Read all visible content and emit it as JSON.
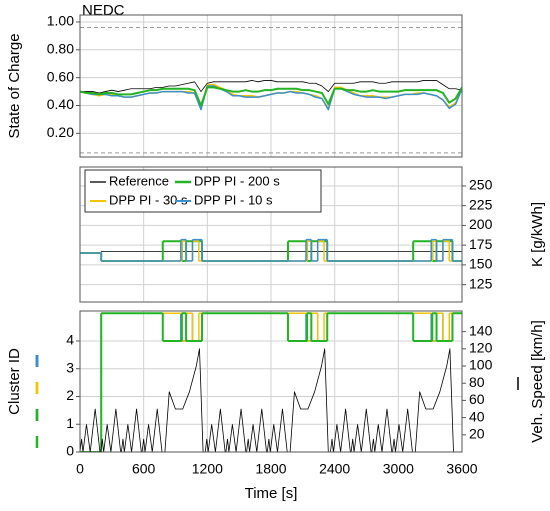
{
  "chart_data": [
    {
      "type": "line",
      "title": "NEDC",
      "ylabel": "State of Charge",
      "x": [
        0,
        60,
        120,
        180,
        240,
        300,
        360,
        420,
        480,
        540,
        600,
        660,
        720,
        780,
        840,
        900,
        960,
        1020,
        1080,
        1140,
        1200,
        1260,
        1320,
        1380,
        1440,
        1500,
        1560,
        1620,
        1680,
        1740,
        1800,
        1860,
        1920,
        1980,
        2040,
        2100,
        2160,
        2220,
        2280,
        2340,
        2400,
        2460,
        2520,
        2580,
        2640,
        2700,
        2760,
        2820,
        2880,
        2940,
        3000,
        3060,
        3120,
        3180,
        3240,
        3300,
        3360,
        3420,
        3480,
        3540,
        3600
      ],
      "series": [
        {
          "color": "#000000",
          "width": 0.8,
          "values": [
            0.5,
            0.5,
            0.5,
            0.49,
            0.5,
            0.51,
            0.5,
            0.51,
            0.52,
            0.52,
            0.52,
            0.52,
            0.53,
            0.53,
            0.54,
            0.54,
            0.55,
            0.56,
            0.57,
            0.5,
            0.56,
            0.57,
            0.57,
            0.57,
            0.57,
            0.57,
            0.57,
            0.58,
            0.57,
            0.58,
            0.58,
            0.57,
            0.57,
            0.57,
            0.57,
            0.57,
            0.56,
            0.56,
            0.54,
            0.5,
            0.56,
            0.56,
            0.56,
            0.56,
            0.57,
            0.57,
            0.57,
            0.56,
            0.56,
            0.57,
            0.57,
            0.57,
            0.57,
            0.57,
            0.58,
            0.58,
            0.58,
            0.55,
            0.52,
            0.52,
            0.51
          ]
        },
        {
          "color": "#f5c400",
          "width": 1.5,
          "values": [
            0.5,
            0.49,
            0.48,
            0.47,
            0.48,
            0.48,
            0.47,
            0.46,
            0.46,
            0.47,
            0.48,
            0.49,
            0.49,
            0.5,
            0.5,
            0.5,
            0.5,
            0.5,
            0.49,
            0.38,
            0.55,
            0.55,
            0.53,
            0.51,
            0.48,
            0.47,
            0.47,
            0.47,
            0.46,
            0.47,
            0.48,
            0.49,
            0.49,
            0.5,
            0.5,
            0.49,
            0.48,
            0.47,
            0.45,
            0.38,
            0.53,
            0.53,
            0.51,
            0.49,
            0.47,
            0.47,
            0.47,
            0.46,
            0.46,
            0.46,
            0.47,
            0.48,
            0.48,
            0.49,
            0.49,
            0.48,
            0.47,
            0.44,
            0.39,
            0.42,
            0.52
          ]
        },
        {
          "color": "#3a8fcf",
          "width": 1.5,
          "values": [
            0.5,
            0.49,
            0.48,
            0.48,
            0.48,
            0.47,
            0.47,
            0.46,
            0.46,
            0.47,
            0.48,
            0.49,
            0.49,
            0.5,
            0.5,
            0.5,
            0.5,
            0.49,
            0.49,
            0.37,
            0.54,
            0.54,
            0.52,
            0.5,
            0.47,
            0.47,
            0.46,
            0.46,
            0.46,
            0.47,
            0.48,
            0.49,
            0.49,
            0.5,
            0.49,
            0.49,
            0.48,
            0.46,
            0.45,
            0.37,
            0.52,
            0.52,
            0.5,
            0.48,
            0.47,
            0.46,
            0.46,
            0.46,
            0.45,
            0.46,
            0.47,
            0.48,
            0.48,
            0.48,
            0.49,
            0.48,
            0.47,
            0.44,
            0.38,
            0.41,
            0.52
          ]
        },
        {
          "color": "#22b422",
          "width": 2,
          "values": [
            0.5,
            0.49,
            0.49,
            0.48,
            0.49,
            0.49,
            0.48,
            0.48,
            0.48,
            0.49,
            0.5,
            0.51,
            0.51,
            0.52,
            0.52,
            0.52,
            0.52,
            0.52,
            0.51,
            0.4,
            0.53,
            0.53,
            0.52,
            0.51,
            0.5,
            0.5,
            0.51,
            0.5,
            0.5,
            0.51,
            0.51,
            0.52,
            0.52,
            0.52,
            0.52,
            0.51,
            0.51,
            0.5,
            0.49,
            0.41,
            0.52,
            0.52,
            0.51,
            0.51,
            0.5,
            0.5,
            0.51,
            0.5,
            0.5,
            0.5,
            0.5,
            0.51,
            0.51,
            0.51,
            0.51,
            0.51,
            0.51,
            0.49,
            0.42,
            0.45,
            0.53
          ]
        }
      ],
      "bounds": [
        0.06,
        0.96
      ],
      "xlim": [
        0,
        3600
      ],
      "xticks": [
        0,
        600,
        1200,
        1800,
        2400,
        3000,
        3600
      ],
      "ylim": [
        0.03,
        1.05
      ],
      "yticks": [
        {
          "value": 0.2,
          "label": "0.20"
        },
        {
          "value": 0.4,
          "label": "0.40"
        },
        {
          "value": 0.6,
          "label": "0.60"
        },
        {
          "value": 0.8,
          "label": "0.80"
        },
        {
          "value": 1.0,
          "label": "1.00"
        }
      ],
      "grid": true,
      "axis_side": "left"
    },
    {
      "type": "line",
      "drawstyle": "steps-post",
      "ylabel": "K [g/kWh]",
      "x": [
        0,
        200,
        780,
        950,
        960,
        1000,
        1060,
        1120,
        1150,
        1960,
        2130,
        2140,
        2180,
        2240,
        2300,
        2330,
        3140,
        3310,
        3320,
        3360,
        3420,
        3480,
        3510,
        3600
      ],
      "series": [
        {
          "name": "Reference",
          "color": "#000000",
          "width": 0.8,
          "values": [
            165,
            167,
            167,
            167,
            167,
            167,
            167,
            167,
            167,
            167,
            167,
            167,
            167,
            167,
            167,
            167,
            167,
            167,
            167,
            167,
            167,
            167,
            167,
            167
          ]
        },
        {
          "name": "DPP PI - 200 s",
          "color": "#22b422",
          "width": 2,
          "values": [
            165,
            155,
            180,
            180,
            155,
            180,
            180,
            180,
            155,
            180,
            180,
            155,
            180,
            180,
            180,
            155,
            180,
            180,
            155,
            180,
            180,
            180,
            155,
            155
          ]
        },
        {
          "name": "DPP PI - 30 s",
          "color": "#f5c400",
          "width": 1.5,
          "values": [
            165,
            155,
            155,
            155,
            180,
            155,
            180,
            155,
            155,
            155,
            155,
            180,
            155,
            180,
            155,
            155,
            155,
            155,
            180,
            155,
            180,
            155,
            155,
            155
          ]
        },
        {
          "name": "DPP PI - 10 s",
          "color": "#3a8fcf",
          "width": 1.5,
          "values": [
            165,
            155,
            155,
            182,
            182,
            155,
            182,
            182,
            155,
            155,
            182,
            182,
            155,
            182,
            182,
            155,
            155,
            182,
            182,
            155,
            182,
            182,
            155,
            155
          ]
        }
      ],
      "legend": "upper left",
      "xlim": [
        0,
        3600
      ],
      "xticks": [
        0,
        600,
        1200,
        1800,
        2400,
        3000,
        3600
      ],
      "ylim": [
        103,
        274
      ],
      "yticks": [
        125,
        150,
        175,
        200,
        225,
        250
      ],
      "grid": true,
      "axis_side": "right"
    },
    {
      "type": "line",
      "drawstyle": "steps-post",
      "ylabel": "Cluster ID",
      "xlabel": "Time [s]",
      "x": [
        0,
        200,
        780,
        950,
        960,
        1000,
        1060,
        1120,
        1150,
        1960,
        2130,
        2140,
        2180,
        2240,
        2300,
        2330,
        3140,
        3310,
        3320,
        3360,
        3420,
        3480,
        3510,
        3600
      ],
      "series": [
        {
          "color": "#3a8fcf",
          "width": 1.5,
          "values": [
            0,
            5,
            5,
            4,
            4,
            5,
            4,
            4,
            5,
            5,
            4,
            4,
            5,
            4,
            4,
            5,
            5,
            4,
            4,
            5,
            4,
            4,
            5,
            5
          ]
        },
        {
          "color": "#f5c400",
          "width": 1.5,
          "values": [
            0,
            5,
            5,
            5,
            4,
            5,
            4,
            5,
            5,
            5,
            5,
            4,
            5,
            4,
            5,
            5,
            5,
            5,
            4,
            5,
            4,
            5,
            5,
            5
          ]
        },
        {
          "color": "#22b422",
          "width": 2,
          "values": [
            0,
            5,
            4,
            4,
            5,
            4,
            4,
            4,
            5,
            4,
            4,
            5,
            4,
            4,
            4,
            5,
            4,
            4,
            5,
            4,
            4,
            4,
            5,
            5
          ]
        }
      ],
      "xlim": [
        0,
        3600
      ],
      "xticks": [
        0,
        600,
        1200,
        1800,
        2400,
        3000,
        3600
      ],
      "ylim": [
        0,
        5.08
      ],
      "yticks": [
        0,
        1,
        2,
        3,
        4
      ],
      "grid": true,
      "axis_side": "left"
    },
    {
      "type": "line",
      "ylabel": "Veh. Speed [km/h]",
      "x": [
        0,
        15,
        28,
        61,
        96,
        143,
        188,
        195,
        210,
        223,
        256,
        291,
        338,
        383,
        390,
        405,
        418,
        451,
        486,
        533,
        578,
        585,
        600,
        613,
        646,
        681,
        728,
        773,
        800,
        841,
        899,
        968,
        1031,
        1096,
        1126,
        1160,
        1180,
        1195,
        1208,
        1241,
        1276,
        1323,
        1368,
        1375,
        1390,
        1403,
        1436,
        1471,
        1518,
        1563,
        1570,
        1585,
        1598,
        1631,
        1666,
        1713,
        1758,
        1765,
        1780,
        1793,
        1826,
        1861,
        1908,
        1953,
        1980,
        2021,
        2079,
        2148,
        2211,
        2276,
        2306,
        2340,
        2360,
        2375,
        2388,
        2421,
        2456,
        2503,
        2548,
        2555,
        2570,
        2583,
        2616,
        2651,
        2698,
        2743,
        2750,
        2765,
        2778,
        2811,
        2846,
        2893,
        2938,
        2945,
        2960,
        2973,
        3006,
        3041,
        3088,
        3133,
        3160,
        3201,
        3259,
        3328,
        3391,
        3456,
        3486,
        3520,
        3600
      ],
      "series": [
        {
          "color": "#000000",
          "width": 0.8,
          "values": [
            0,
            15,
            0,
            32,
            0,
            50,
            0,
            0,
            15,
            0,
            32,
            0,
            50,
            0,
            0,
            15,
            0,
            32,
            0,
            50,
            0,
            0,
            15,
            0,
            32,
            0,
            50,
            0,
            0,
            70,
            50,
            50,
            70,
            100,
            120,
            0,
            0,
            15,
            0,
            32,
            0,
            50,
            0,
            0,
            15,
            0,
            32,
            0,
            50,
            0,
            0,
            15,
            0,
            32,
            0,
            50,
            0,
            0,
            15,
            0,
            32,
            0,
            50,
            0,
            0,
            70,
            50,
            50,
            70,
            100,
            120,
            0,
            0,
            15,
            0,
            32,
            0,
            50,
            0,
            0,
            15,
            0,
            32,
            0,
            50,
            0,
            0,
            15,
            0,
            32,
            0,
            50,
            0,
            0,
            15,
            0,
            32,
            0,
            50,
            0,
            0,
            70,
            50,
            50,
            70,
            100,
            120,
            0,
            0
          ]
        }
      ],
      "xlim": [
        0,
        3600
      ],
      "ylim": [
        0,
        164
      ],
      "yticks": [
        20,
        40,
        60,
        80,
        100,
        120,
        140
      ],
      "grid": false,
      "axis_side": "right"
    }
  ]
}
